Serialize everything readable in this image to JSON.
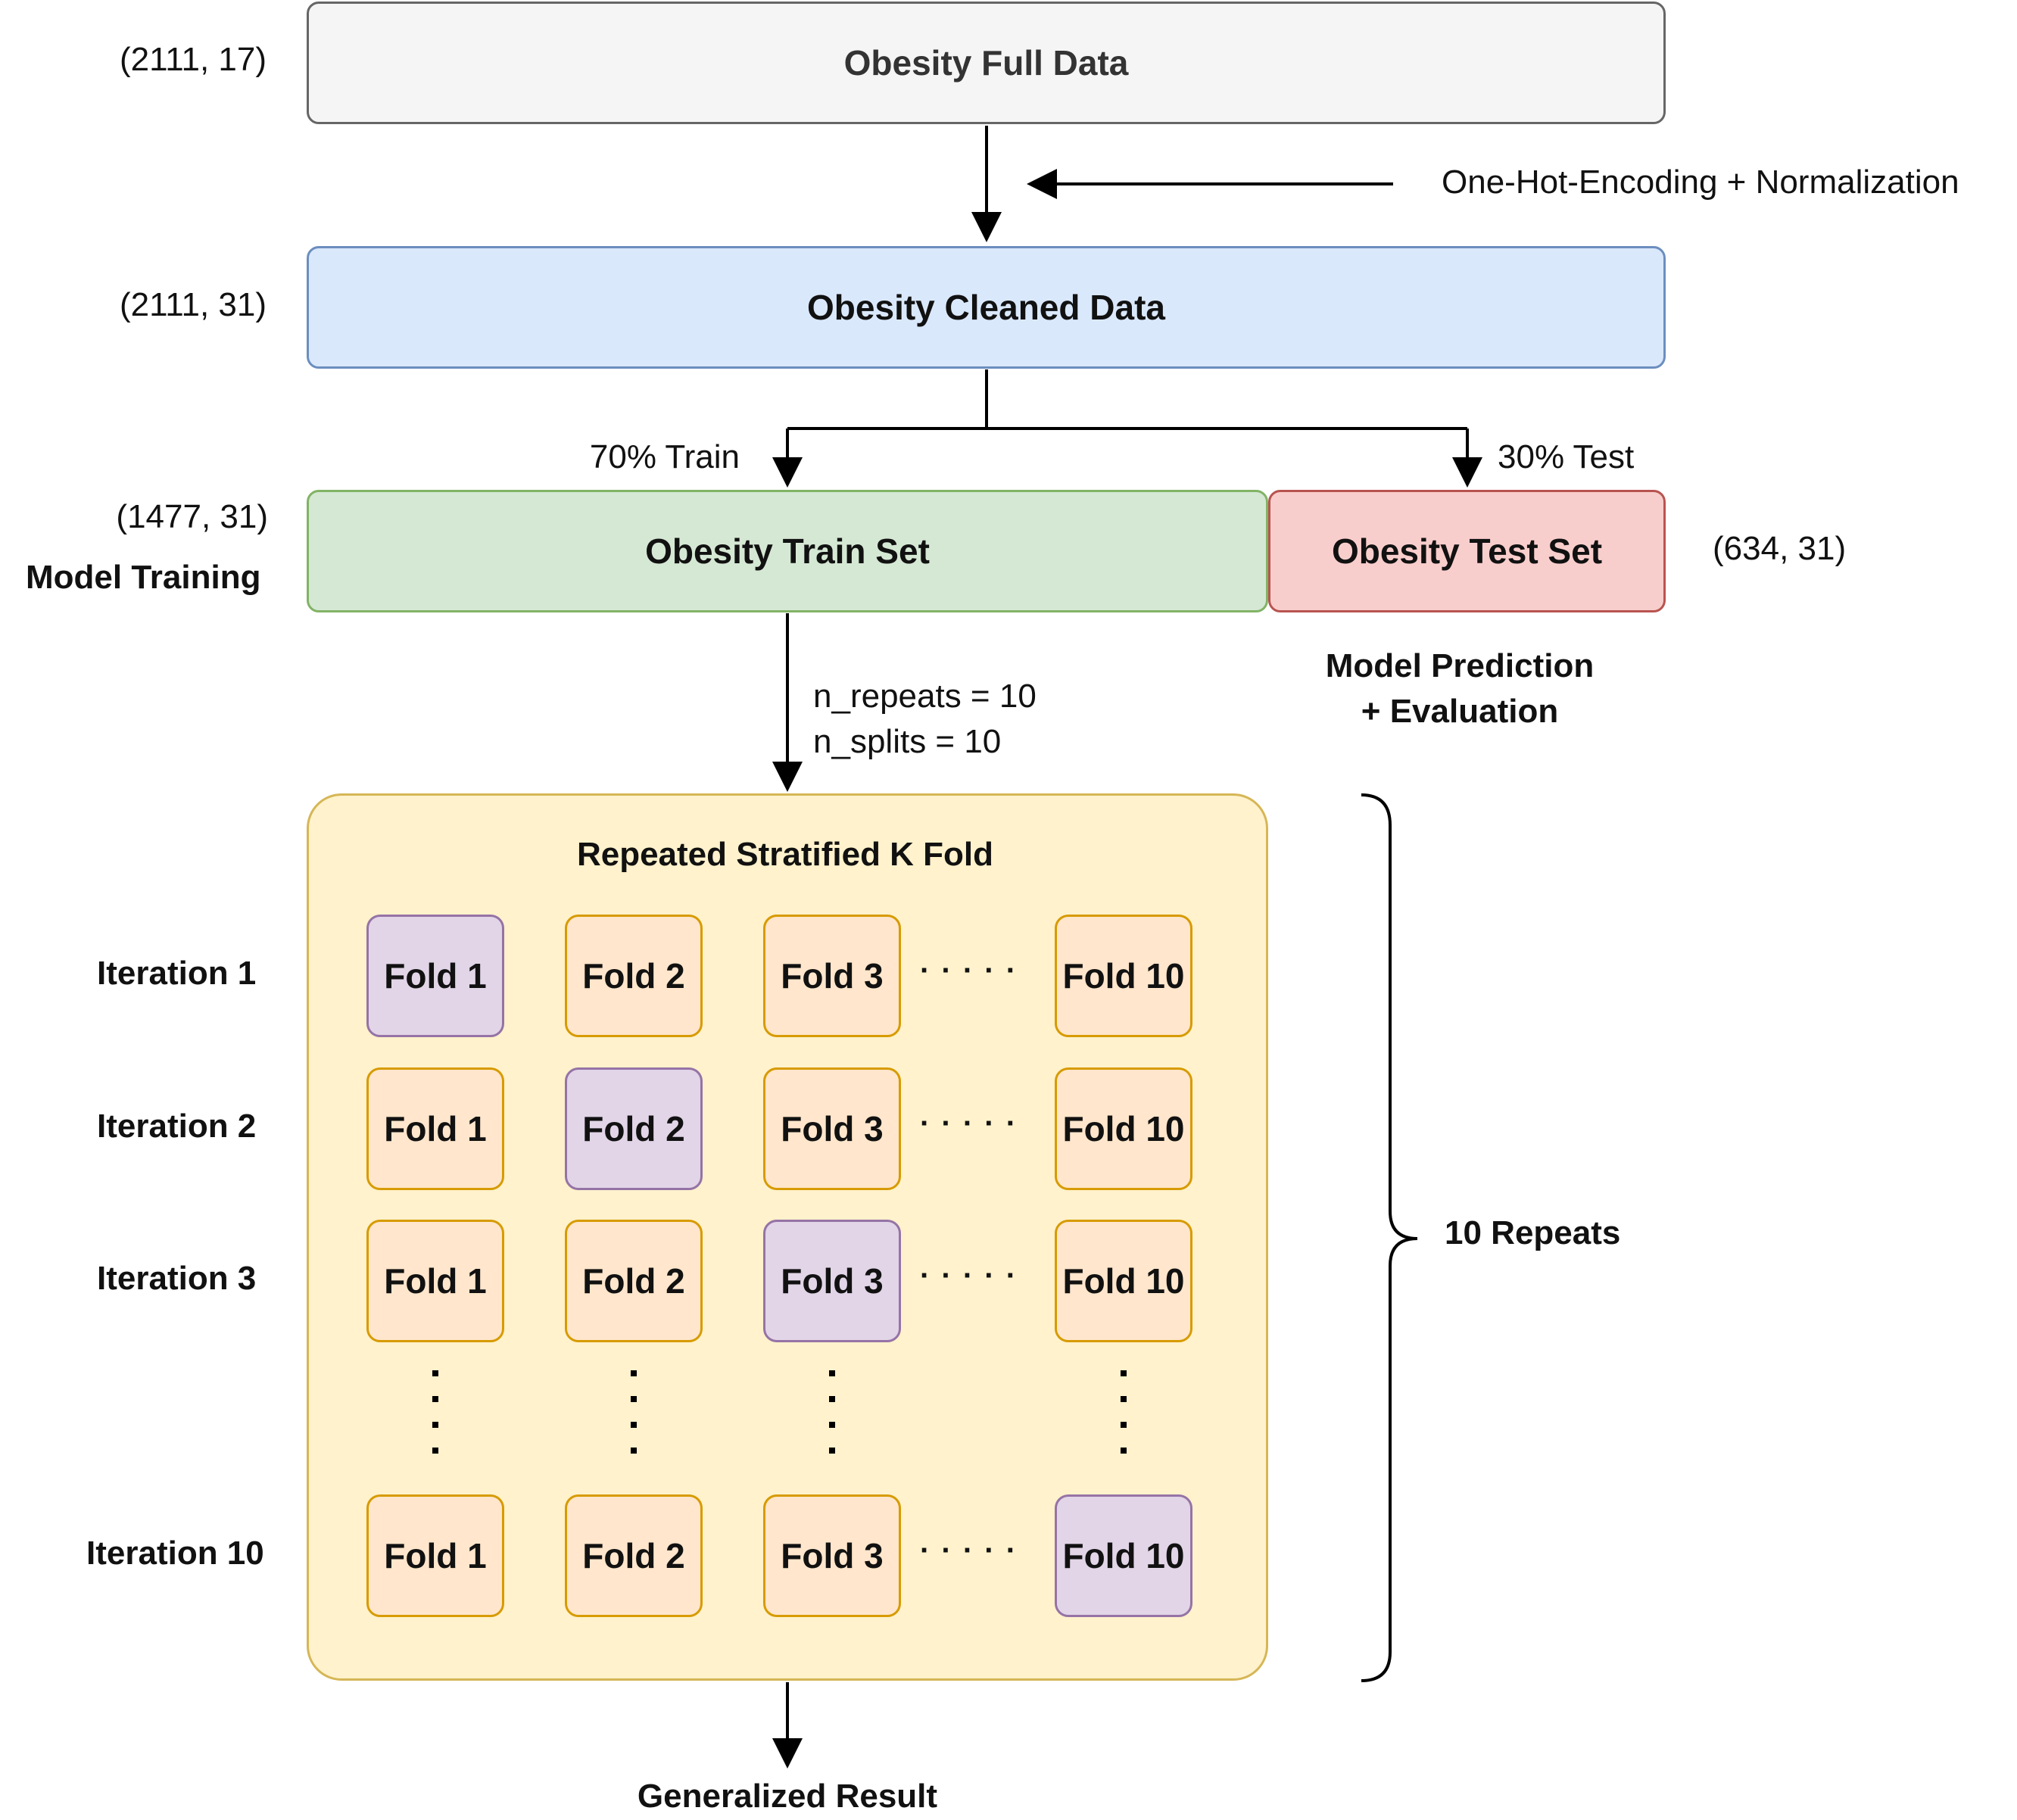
{
  "data_boxes": {
    "full": "Obesity Full Data",
    "cleaned": "Obesity Cleaned Data",
    "train": "Obesity Train Set",
    "test": "Obesity Test Set"
  },
  "shapes": {
    "full": "(2111, 17)",
    "cleaned": "(2111, 31)",
    "train": "(1477, 31)",
    "test": "(634, 31)"
  },
  "preprocessing_label": "One-Hot-Encoding + Normalization",
  "split": {
    "train_label": "70% Train",
    "test_label": "30% Test"
  },
  "model_training_label": "Model Training",
  "model_prediction_label": {
    "line1": "Model Prediction",
    "line2": "+ Evaluation"
  },
  "cv_params": {
    "repeats": "n_repeats = 10",
    "splits": "n_splits = 10"
  },
  "kfold_title": "Repeated Stratified K Fold",
  "iterations": [
    {
      "label": "Iteration 1",
      "folds": [
        "Fold 1",
        "Fold 2",
        "Fold 3",
        "Fold 10"
      ],
      "validation_index": 0
    },
    {
      "label": "Iteration 2",
      "folds": [
        "Fold 1",
        "Fold 2",
        "Fold 3",
        "Fold 10"
      ],
      "validation_index": 1
    },
    {
      "label": "Iteration 3",
      "folds": [
        "Fold 1",
        "Fold 2",
        "Fold 3",
        "Fold 10"
      ],
      "validation_index": 2
    },
    {
      "label": "Iteration 10",
      "folds": [
        "Fold 1",
        "Fold 2",
        "Fold 3",
        "Fold 10"
      ],
      "validation_index": 3
    }
  ],
  "horizontal_ellipsis": "· · · · ·",
  "repeats_label": "10 Repeats",
  "result_label": "Generalized Result",
  "colors": {
    "full_fill": "#f5f5f5",
    "cleaned_fill": "#dae8fc",
    "train_fill": "#d5e8d4",
    "test_fill": "#f8cecc",
    "kfold_fill": "#fff2cc",
    "train_fold_fill": "#ffe6cc",
    "validation_fold_fill": "#e1d5e7"
  }
}
